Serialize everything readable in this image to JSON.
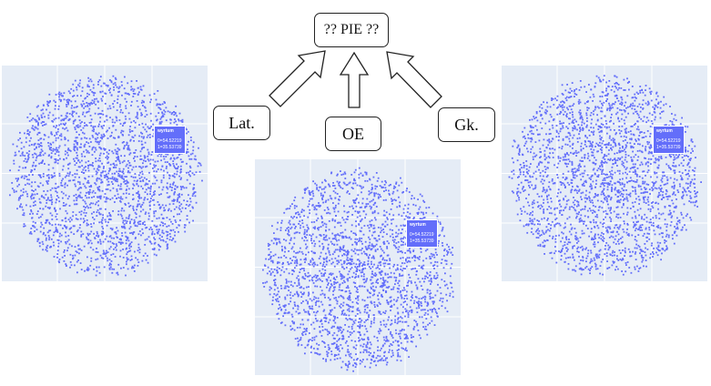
{
  "diagram": {
    "target_label": "?? PIE ??",
    "sources": [
      {
        "id": "lat",
        "label": "Lat."
      },
      {
        "id": "oe",
        "label": "OE"
      },
      {
        "id": "gk",
        "label": "Gk."
      }
    ]
  },
  "plots": [
    {
      "id": "lat",
      "tooltip": {
        "word": "wyrtum",
        "line1": "0=54.52219",
        "line2": "1=35.53739"
      }
    },
    {
      "id": "oe",
      "tooltip": {
        "word": "wyrtum",
        "line1": "0=54.52219",
        "line2": "1=35.53739"
      }
    },
    {
      "id": "gk",
      "tooltip": {
        "word": "wyrtum",
        "line1": "0=54.52219",
        "line2": "1=35.53739"
      }
    }
  ],
  "colors": {
    "plot_background": "#e5ecf6",
    "point": "#636efa",
    "gridline": "#ffffff",
    "tooltip_bg": "#636efa"
  }
}
